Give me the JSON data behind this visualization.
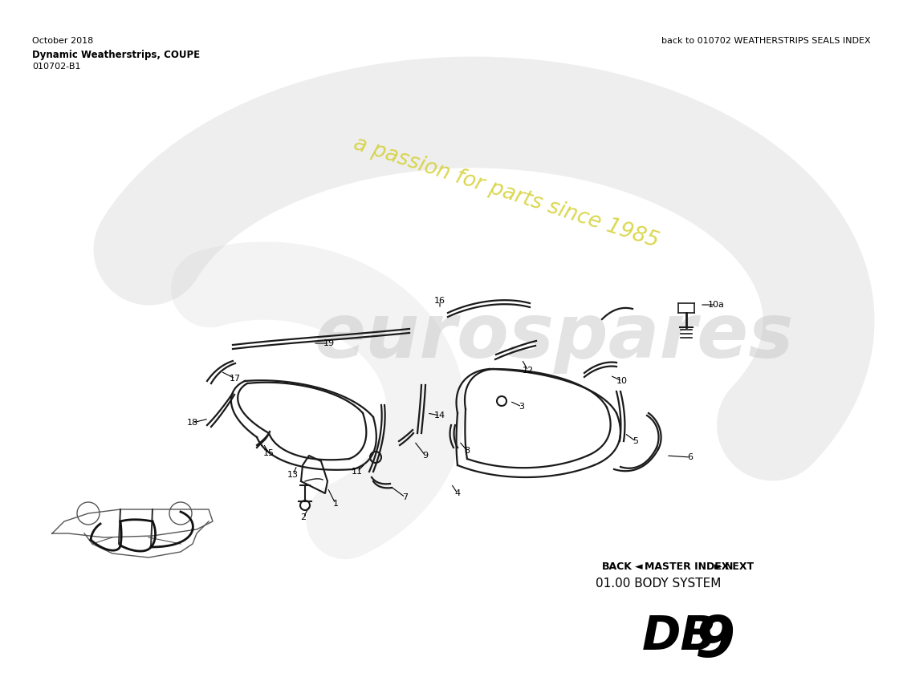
{
  "title_db": "DB",
  "title_9": "9",
  "subtitle": "01.00 BODY SYSTEM",
  "nav": "BACK ◄   MASTER INDEX   ► NEXT",
  "part_number": "010702-B1",
  "diagram_name": "Dynamic Weatherstrips, COUPE",
  "date": "October 2018",
  "back_link": "back to 010702 WEATHERSTRIPS SEALS INDEX",
  "bg_color": "#ffffff",
  "line_color": "#1a1a1a",
  "wm_logo_color": "#d8d8d8",
  "wm_text_color": "#d4d030"
}
